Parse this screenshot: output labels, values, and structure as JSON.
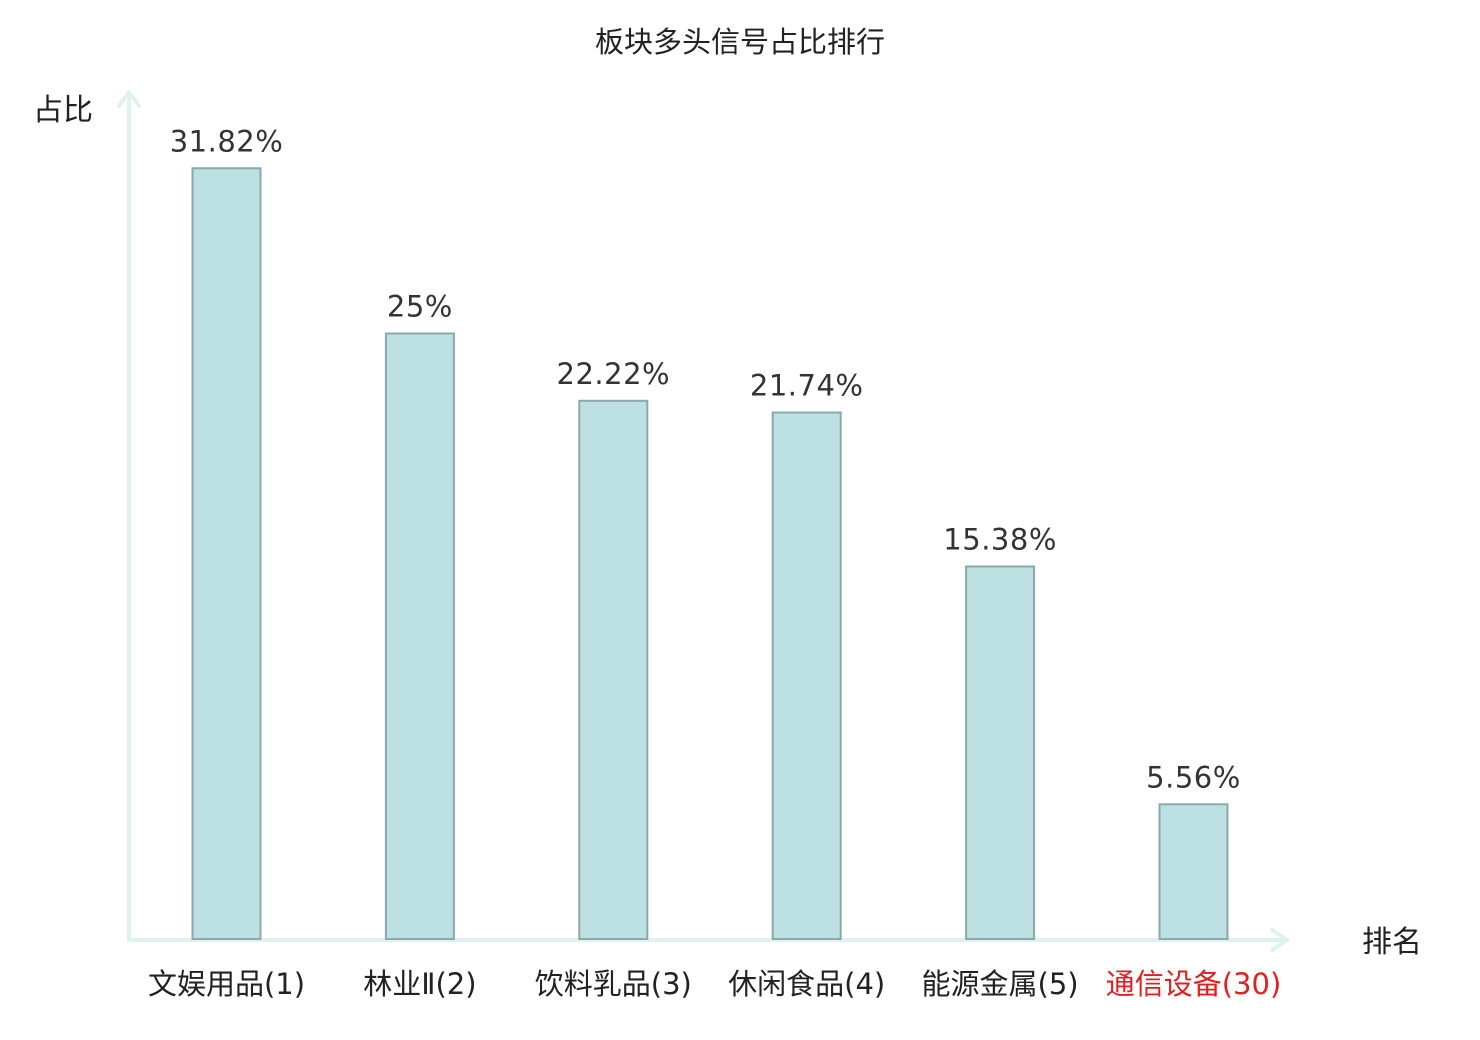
{
  "chart_data": {
    "type": "bar",
    "title": "板块多头信号占比排行",
    "xlabel": "排名",
    "ylabel": "占比",
    "ylim": [
      0,
      35
    ],
    "grid": false,
    "categories": [
      "文娱用品(1)",
      "林业Ⅱ(2)",
      "饮料乳品(3)",
      "休闲食品(4)",
      "能源金属(5)",
      "通信设备(30)"
    ],
    "values": [
      31.82,
      25,
      22.22,
      21.74,
      15.38,
      5.56
    ],
    "value_labels": [
      "31.82%",
      "25%",
      "22.22%",
      "21.74%",
      "15.38%",
      "5.56%"
    ],
    "highlight_index": 5,
    "colors": {
      "bar_fill": "#bde0e2",
      "bar_stroke": "#8ba8aa",
      "axis": "#e0f2ef",
      "label_text": "#222222",
      "value_text": "#333333",
      "highlight_text": "#e02020"
    }
  }
}
